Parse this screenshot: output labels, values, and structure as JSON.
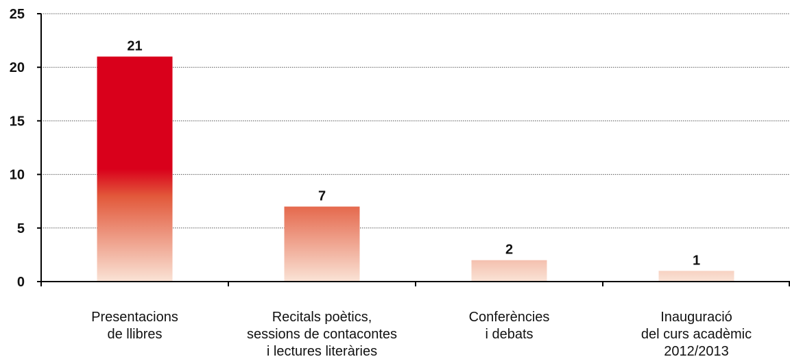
{
  "chart_data": {
    "type": "bar",
    "categories": [
      [
        "Presentacions",
        "de llibres"
      ],
      [
        "Recitals poètics,",
        "sessions de contacontes",
        "i lectures literàries"
      ],
      [
        "Conferències",
        "i debats"
      ],
      [
        "Inauguració",
        "del curs acadèmic",
        "2012/2013"
      ]
    ],
    "values": [
      21,
      7,
      2,
      1
    ],
    "data_labels": [
      "21",
      "7",
      "2",
      "1"
    ],
    "ylim": [
      0,
      25
    ],
    "yticks": [
      0,
      5,
      10,
      15,
      20,
      25
    ],
    "ytick_labels": [
      "0",
      "5",
      "10",
      "15",
      "20",
      "25"
    ],
    "grid": true,
    "title": "",
    "xlabel": "",
    "ylabel": "",
    "colors": {
      "bar_top": "#d9001b",
      "bar_mid": "#e2583a",
      "bar_bottom": "#fae3d6",
      "grid": "#555555",
      "axis": "#000000"
    }
  }
}
